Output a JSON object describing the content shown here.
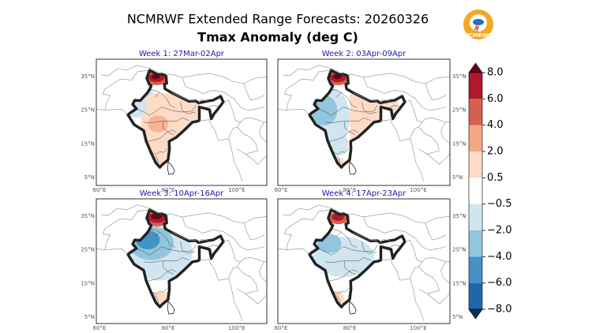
{
  "header": {
    "title": "NCMRWF Extended Range Forecasts: 20260326",
    "subtitle": "Tmax Anomaly (deg C)"
  },
  "logo": {
    "text": "NCMRWF"
  },
  "panels": [
    {
      "title": "Week 1: 27Mar-02Apr",
      "lat_labels": [
        "35°N",
        "25°N",
        "15°N",
        "5°N"
      ],
      "lon_labels": [
        "60°E",
        "80°E",
        "100°E"
      ]
    },
    {
      "title": "Week 2: 03Apr-09Apr",
      "lat_labels": [
        "35°N",
        "25°N",
        "15°N",
        "5°N"
      ],
      "lon_labels": [
        "60°E",
        "80°E",
        "100°E"
      ]
    },
    {
      "title": "Week 3: 10Apr-16Apr",
      "lat_labels": [
        "35°N",
        "25°N",
        "15°N",
        "5°N"
      ],
      "lon_labels": [
        "60°E",
        "80°E",
        "100°E"
      ]
    },
    {
      "title": "Week 4: 17Apr-23Apr",
      "lat_labels": [
        "35°N",
        "25°N",
        "15°N",
        "5°N"
      ],
      "lon_labels": [
        "60°E",
        "80°E",
        "100°E"
      ]
    }
  ],
  "colorbar": {
    "ticks": [
      {
        "value": 8,
        "label": "8.0"
      },
      {
        "value": 6,
        "label": "6.0"
      },
      {
        "value": 4,
        "label": "4.0"
      },
      {
        "value": 2,
        "label": "2.0"
      },
      {
        "value": 0.5,
        "label": "0.5"
      },
      {
        "value": -0.5,
        "label": "−0.5"
      },
      {
        "value": -2,
        "label": "−2.0"
      },
      {
        "value": -4,
        "label": "−4.0"
      },
      {
        "value": -6,
        "label": "−6.0"
      },
      {
        "value": -8,
        "label": "−8.0"
      }
    ],
    "colors": [
      "#67001f",
      "#b2182b",
      "#d6604d",
      "#f4a582",
      "#fddbc7",
      "#ffffff",
      "#d1e5f0",
      "#92c5de",
      "#4393c3",
      "#2166ac",
      "#053061"
    ]
  }
}
